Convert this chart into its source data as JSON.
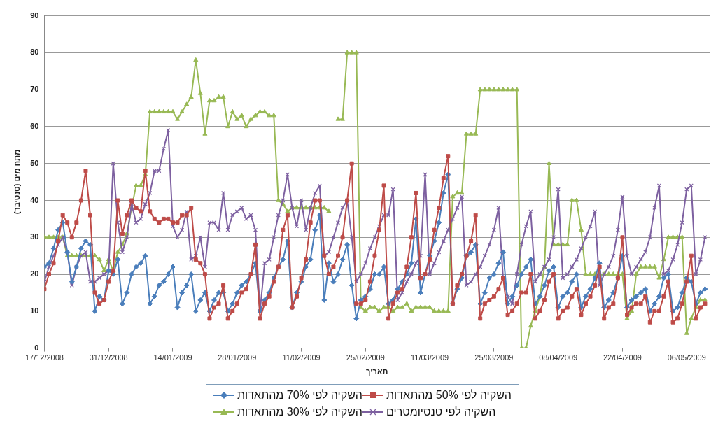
{
  "chart_data": {
    "type": "line",
    "xlabel": "תאריך",
    "ylabel": "מתח מים (סנטיבר)",
    "x": [
      "2008-12-17",
      "2008-12-18",
      "2008-12-19",
      "2008-12-20",
      "2008-12-21",
      "2008-12-22",
      "2008-12-23",
      "2008-12-24",
      "2008-12-25",
      "2008-12-26",
      "2008-12-27",
      "2008-12-28",
      "2008-12-29",
      "2008-12-30",
      "2008-12-31",
      "2009-01-01",
      "2009-01-02",
      "2009-01-03",
      "2009-01-04",
      "2009-01-05",
      "2009-01-06",
      "2009-01-07",
      "2009-01-08",
      "2009-01-09",
      "2009-01-10",
      "2009-01-11",
      "2009-01-12",
      "2009-01-13",
      "2009-01-14",
      "2009-01-15",
      "2009-01-16",
      "2009-01-17",
      "2009-01-18",
      "2009-01-19",
      "2009-01-20",
      "2009-01-21",
      "2009-01-22",
      "2009-01-23",
      "2009-01-24",
      "2009-01-25",
      "2009-01-26",
      "2009-01-27",
      "2009-01-28",
      "2009-01-29",
      "2009-01-30",
      "2009-01-31",
      "2009-02-01",
      "2009-02-02",
      "2009-02-03",
      "2009-02-04",
      "2009-02-05",
      "2009-02-06",
      "2009-02-07",
      "2009-02-08",
      "2009-02-09",
      "2009-02-10",
      "2009-02-11",
      "2009-02-12",
      "2009-02-13",
      "2009-02-14",
      "2009-02-15",
      "2009-02-16",
      "2009-02-17",
      "2009-02-18",
      "2009-02-19",
      "2009-02-20",
      "2009-02-21",
      "2009-02-22",
      "2009-02-23",
      "2009-02-24",
      "2009-02-25",
      "2009-02-26",
      "2009-02-27",
      "2009-02-28",
      "2009-03-01",
      "2009-03-02",
      "2009-03-03",
      "2009-03-04",
      "2009-03-05",
      "2009-03-06",
      "2009-03-07",
      "2009-03-08",
      "2009-03-09",
      "2009-03-10",
      "2009-03-11",
      "2009-03-12",
      "2009-03-13",
      "2009-03-14",
      "2009-03-15",
      "2009-03-16",
      "2009-03-17",
      "2009-03-18",
      "2009-03-19",
      "2009-03-20",
      "2009-03-21",
      "2009-03-22",
      "2009-03-23",
      "2009-03-24",
      "2009-03-25",
      "2009-03-26",
      "2009-03-27",
      "2009-03-28",
      "2009-03-29",
      "2009-03-30",
      "2009-03-31",
      "2009-04-01",
      "2009-04-02",
      "2009-04-03",
      "2009-04-04",
      "2009-04-05",
      "2009-04-06",
      "2009-04-07",
      "2009-04-08",
      "2009-04-09",
      "2009-04-10",
      "2009-04-11",
      "2009-04-12",
      "2009-04-13",
      "2009-04-14",
      "2009-04-15",
      "2009-04-16",
      "2009-04-17",
      "2009-04-18",
      "2009-04-19",
      "2009-04-20",
      "2009-04-21",
      "2009-04-22",
      "2009-04-23",
      "2009-04-24",
      "2009-04-25",
      "2009-04-26",
      "2009-04-27",
      "2009-04-28",
      "2009-04-29",
      "2009-04-30",
      "2009-05-01",
      "2009-05-02",
      "2009-05-03",
      "2009-05-04",
      "2009-05-05",
      "2009-05-06",
      "2009-05-07",
      "2009-05-08",
      "2009-05-09",
      "2009-05-10"
    ],
    "xlim": [
      "2008-12-17",
      "2009-05-11"
    ],
    "xticks": [
      {
        "value": "2008-12-17",
        "label": "17/12/2008"
      },
      {
        "value": "2008-12-31",
        "label": "31/12/2008"
      },
      {
        "value": "2009-01-14",
        "label": "14/01/2009"
      },
      {
        "value": "2009-01-28",
        "label": "28/01/2009"
      },
      {
        "value": "2009-02-11",
        "label": "11/02/2009"
      },
      {
        "value": "2009-02-25",
        "label": "25/02/2009"
      },
      {
        "value": "2009-03-11",
        "label": "11/03/2009"
      },
      {
        "value": "2009-03-25",
        "label": "25/03/2009"
      },
      {
        "value": "2009-04-08",
        "label": "08/04/2009"
      },
      {
        "value": "2009-04-22",
        "label": "22/04/2009"
      },
      {
        "value": "2009-05-06",
        "label": "06/05/2009"
      }
    ],
    "ylim": [
      0,
      90
    ],
    "yticks": [
      0,
      10,
      20,
      30,
      40,
      50,
      60,
      70,
      80,
      90
    ],
    "grid": "y",
    "legend": "bottom",
    "series": [
      {
        "name": "השקיה לפי 50% מהתאדות",
        "color": "#be4b48",
        "marker": "square",
        "values": [
          16,
          20,
          23,
          29,
          36,
          34,
          30,
          34,
          40,
          48,
          36,
          15,
          12,
          13,
          18,
          21,
          40,
          31,
          36,
          40,
          38,
          37,
          48,
          37,
          35,
          34,
          35,
          35,
          34,
          34,
          36,
          36,
          38,
          24,
          23,
          20,
          8,
          11,
          12,
          17,
          8,
          10,
          12,
          15,
          16,
          20,
          28,
          8,
          12,
          14,
          18,
          22,
          32,
          36,
          11,
          14,
          19,
          24,
          34,
          40,
          40,
          25,
          20,
          22,
          25,
          30,
          40,
          50,
          12,
          12,
          13,
          18,
          25,
          32,
          44,
          8,
          12,
          15,
          16,
          22,
          30,
          42,
          19,
          20,
          24,
          32,
          38,
          46,
          52,
          12,
          17,
          20,
          25,
          29,
          36,
          8,
          12,
          13,
          14,
          16,
          19,
          9,
          10,
          12,
          15,
          15,
          20,
          8,
          10,
          13,
          18,
          20,
          8,
          10,
          11,
          14,
          16,
          9,
          12,
          14,
          17,
          22,
          8,
          11,
          12,
          19,
          30,
          9,
          11,
          12,
          12,
          14,
          7,
          10,
          10,
          14,
          18,
          7,
          8,
          12,
          18,
          25,
          8,
          11,
          12
        ]
      },
      {
        "name": "השקיה לפי 70% מהתאדות",
        "color": "#4a7ebb",
        "marker": "diamond",
        "values": [
          22,
          23,
          27,
          32,
          34,
          26,
          18,
          22,
          27,
          29,
          28,
          10,
          14,
          13,
          21,
          20,
          24,
          12,
          15,
          20,
          22,
          23,
          25,
          12,
          14,
          17,
          18,
          20,
          22,
          11,
          15,
          17,
          20,
          10,
          13,
          15,
          10,
          13,
          15,
          15,
          10,
          12,
          15,
          17,
          18,
          20,
          23,
          10,
          13,
          15,
          19,
          22,
          24,
          29,
          11,
          15,
          18,
          22,
          24,
          32,
          36,
          13,
          23,
          18,
          20,
          24,
          28,
          17,
          8,
          13,
          14,
          16,
          20,
          20,
          22,
          12,
          13,
          16,
          18,
          20,
          23,
          35,
          15,
          20,
          25,
          29,
          34,
          42,
          47,
          12,
          16,
          19,
          25,
          26,
          28,
          12,
          15,
          19,
          20,
          23,
          26,
          12,
          14,
          17,
          20,
          22,
          24,
          12,
          14,
          17,
          21,
          22,
          11,
          14,
          15,
          18,
          20,
          11,
          14,
          16,
          19,
          23,
          11,
          13,
          15,
          19,
          25,
          11,
          13,
          14,
          15,
          16,
          10,
          12,
          14,
          19,
          20,
          10,
          11,
          15,
          19,
          18,
          12,
          15,
          16
        ]
      },
      {
        "name": "השקיה לפי טנסיומטרים",
        "color": "#7d60a0",
        "marker": "cross",
        "values": [
          18,
          22,
          25,
          28,
          30,
          26,
          17,
          22,
          25,
          26,
          18,
          18,
          19,
          20,
          21,
          50,
          34,
          26,
          30,
          39,
          34,
          35,
          39,
          42,
          48,
          48,
          54,
          59,
          33,
          30,
          32,
          37,
          24,
          25,
          30,
          22,
          34,
          34,
          32,
          42,
          32,
          36,
          37,
          38,
          35,
          36,
          32,
          10,
          23,
          24,
          30,
          36,
          40,
          47,
          38,
          33,
          40,
          32,
          38,
          42,
          44,
          25,
          26,
          30,
          34,
          38,
          40,
          30,
          18,
          20,
          23,
          27,
          30,
          33,
          36,
          36,
          43,
          13,
          15,
          18,
          20,
          23,
          25,
          47,
          20,
          23,
          26,
          29,
          32,
          35,
          38,
          41,
          17,
          18,
          20,
          22,
          25,
          28,
          32,
          38,
          19,
          14,
          12,
          20,
          28,
          33,
          37,
          18,
          20,
          22,
          24,
          30,
          43,
          19,
          20,
          22,
          24,
          27,
          30,
          33,
          37,
          17,
          20,
          22,
          25,
          32,
          41,
          25,
          20,
          22,
          24,
          26,
          30,
          38,
          44,
          20,
          21,
          24,
          28,
          34,
          43,
          44,
          20,
          24,
          30
        ]
      },
      {
        "name": "השקיה לפי 30% מהתאדות",
        "color": "#98b954",
        "marker": "triangle",
        "values": [
          30,
          30,
          30,
          30,
          30,
          25,
          25,
          25,
          25,
          25,
          25,
          25,
          24,
          21,
          24,
          21,
          26,
          28,
          31,
          38,
          44,
          44,
          47,
          64,
          64,
          64,
          64,
          64,
          64,
          62,
          64,
          66,
          68,
          78,
          69,
          58,
          67,
          67,
          68,
          68,
          60,
          64,
          62,
          63,
          60,
          62,
          63,
          64,
          64,
          63,
          63,
          40,
          39,
          37,
          38,
          38,
          38,
          38,
          38,
          38,
          38,
          38,
          37,
          null,
          62,
          62,
          80,
          80,
          80,
          11,
          10,
          11,
          11,
          10,
          11,
          11,
          10,
          11,
          11,
          12,
          10,
          11,
          11,
          11,
          11,
          10,
          10,
          10,
          10,
          41,
          42,
          42,
          58,
          58,
          58,
          70,
          70,
          70,
          70,
          70,
          70,
          70,
          70,
          70,
          0,
          0,
          6,
          10,
          14,
          22,
          50,
          28,
          28,
          28,
          28,
          40,
          40,
          32,
          20,
          20,
          20,
          20,
          20,
          20,
          20,
          20,
          20,
          8,
          10,
          20,
          22,
          22,
          22,
          22,
          19,
          24,
          30,
          30,
          30,
          30,
          4,
          8,
          11,
          13,
          13
        ]
      }
    ]
  }
}
